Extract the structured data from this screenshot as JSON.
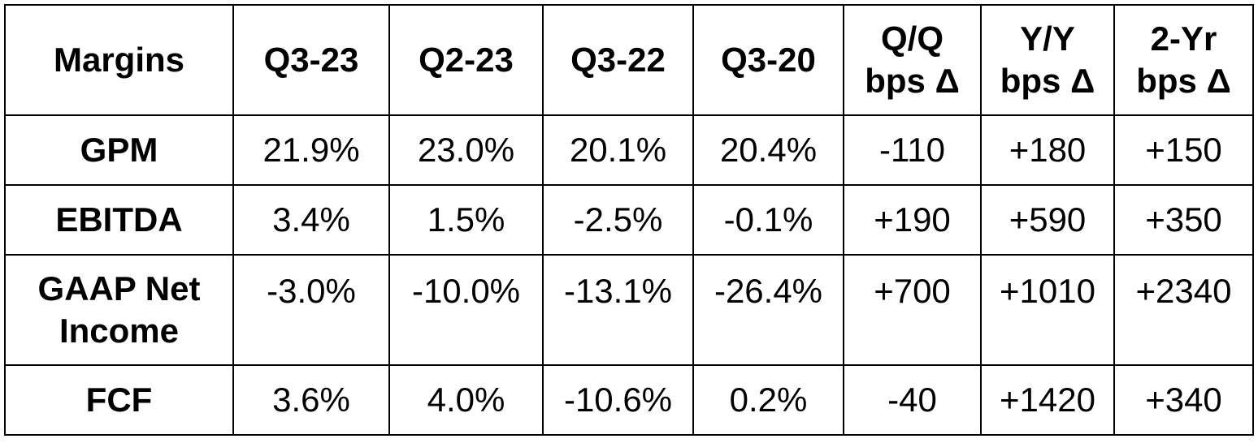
{
  "table": {
    "headers": [
      "Margins",
      "Q3-23",
      "Q2-23",
      "Q3-22",
      "Q3-20",
      "Q/Q bps Δ",
      "Y/Y bps Δ",
      "2-Yr bps Δ"
    ],
    "header_lines": [
      [
        "Margins"
      ],
      [
        "Q3-23"
      ],
      [
        "Q2-23"
      ],
      [
        "Q3-22"
      ],
      [
        "Q3-20"
      ],
      [
        "Q/Q",
        "bps Δ"
      ],
      [
        "Y/Y",
        "bps Δ"
      ],
      [
        "2-Yr",
        "bps Δ"
      ]
    ],
    "rows": [
      {
        "label_lines": [
          "GPM"
        ],
        "values": [
          "21.9%",
          "23.0%",
          "20.1%",
          "20.4%",
          "-110",
          "+180",
          "+150"
        ]
      },
      {
        "label_lines": [
          "EBITDA"
        ],
        "values": [
          "3.4%",
          "1.5%",
          "-2.5%",
          "-0.1%",
          "+190",
          "+590",
          "+350"
        ]
      },
      {
        "label_lines": [
          "GAAP Net",
          "Income"
        ],
        "values": [
          "-3.0%",
          "-10.0%",
          "-13.1%",
          "-26.4%",
          "+700",
          "+1010",
          "+2340"
        ]
      },
      {
        "label_lines": [
          "FCF"
        ],
        "values": [
          "3.6%",
          "4.0%",
          "-10.6%",
          "0.2%",
          "-40",
          "+1420",
          "+340"
        ]
      }
    ]
  }
}
